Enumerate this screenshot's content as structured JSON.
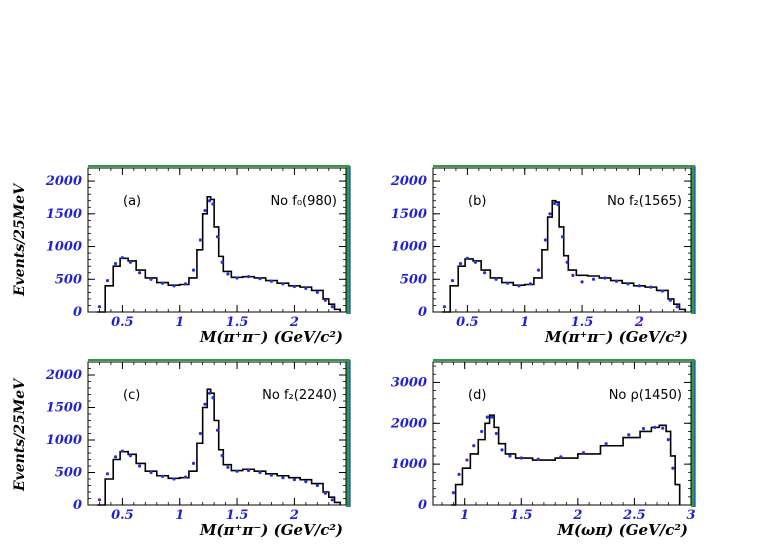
{
  "figure": {
    "y_title": "Events/25MeV"
  },
  "colors": {
    "frame_shadow_green": "#2e9b4a",
    "frame_shadow_blue": "#2040d0",
    "tick_label_blue": "#1f1fd6",
    "data_points": "#2233dd",
    "histogram": "#000000"
  },
  "chart_data": [
    {
      "id": "a",
      "type": "line",
      "panel_label": "(a)",
      "annotation": "No f₀(980)",
      "xlabel": "M(π⁺π⁻) (GeV/c²)",
      "ylabel": "Events/25MeV",
      "xlim": [
        0.2,
        2.45
      ],
      "ylim": [
        0,
        2200
      ],
      "xticks": [
        0.5,
        1,
        1.5,
        2
      ],
      "xtick_labels": [
        "0.5",
        "1",
        "1.5",
        "2"
      ],
      "yticks": [
        0,
        500,
        1000,
        1500,
        2000
      ],
      "ytick_labels": [
        "0",
        "500",
        "1000",
        "1500",
        "2000"
      ],
      "grid": false,
      "series": [
        {
          "style": "histogram",
          "x": [
            0.28,
            0.35,
            0.42,
            0.48,
            0.55,
            0.62,
            0.7,
            0.8,
            0.9,
            1.0,
            1.08,
            1.15,
            1.2,
            1.24,
            1.27,
            1.3,
            1.34,
            1.38,
            1.45,
            1.55,
            1.65,
            1.75,
            1.85,
            1.95,
            2.05,
            2.15,
            2.25,
            2.3,
            2.35,
            2.4
          ],
          "y": [
            0,
            400,
            700,
            820,
            780,
            640,
            520,
            450,
            410,
            420,
            520,
            950,
            1500,
            1760,
            1720,
            1300,
            850,
            620,
            530,
            540,
            520,
            480,
            440,
            400,
            380,
            330,
            200,
            120,
            40,
            0
          ]
        },
        {
          "style": "points",
          "x": [
            0.3,
            0.37,
            0.44,
            0.5,
            0.57,
            0.65,
            0.75,
            0.85,
            0.95,
            1.05,
            1.12,
            1.18,
            1.22,
            1.26,
            1.29,
            1.33,
            1.37,
            1.42,
            1.5,
            1.6,
            1.7,
            1.8,
            1.9,
            2.0,
            2.1,
            2.2,
            2.27,
            2.33
          ],
          "y": [
            80,
            480,
            740,
            830,
            760,
            600,
            500,
            440,
            400,
            430,
            640,
            1100,
            1550,
            1700,
            1650,
            1150,
            760,
            580,
            520,
            540,
            510,
            470,
            430,
            390,
            360,
            300,
            180,
            80
          ]
        }
      ]
    },
    {
      "id": "b",
      "type": "line",
      "panel_label": "(b)",
      "annotation": "No f₂(1565)",
      "xlabel": "M(π⁺π⁻) (GeV/c²)",
      "ylabel": "",
      "xlim": [
        0.2,
        2.45
      ],
      "ylim": [
        0,
        2200
      ],
      "xticks": [
        0.5,
        1,
        1.5,
        2
      ],
      "xtick_labels": [
        "0.5",
        "1",
        "1.5",
        "2"
      ],
      "yticks": [
        0,
        500,
        1000,
        1500,
        2000
      ],
      "ytick_labels": [
        "0",
        "500",
        "1000",
        "1500",
        "2000"
      ],
      "grid": false,
      "series": [
        {
          "style": "histogram",
          "x": [
            0.28,
            0.35,
            0.42,
            0.48,
            0.55,
            0.62,
            0.7,
            0.8,
            0.9,
            1.0,
            1.08,
            1.15,
            1.2,
            1.24,
            1.27,
            1.3,
            1.34,
            1.38,
            1.45,
            1.55,
            1.65,
            1.75,
            1.85,
            1.95,
            2.05,
            2.15,
            2.25,
            2.3,
            2.35,
            2.4
          ],
          "y": [
            0,
            400,
            700,
            810,
            780,
            640,
            520,
            450,
            410,
            420,
            520,
            950,
            1450,
            1700,
            1680,
            1300,
            860,
            640,
            560,
            550,
            520,
            480,
            440,
            400,
            380,
            330,
            200,
            120,
            40,
            0
          ]
        },
        {
          "style": "points",
          "x": [
            0.3,
            0.37,
            0.44,
            0.5,
            0.57,
            0.65,
            0.75,
            0.85,
            0.95,
            1.05,
            1.12,
            1.18,
            1.22,
            1.26,
            1.29,
            1.33,
            1.37,
            1.42,
            1.5,
            1.6,
            1.7,
            1.8,
            1.9,
            2.0,
            2.1,
            2.2,
            2.27,
            2.33
          ],
          "y": [
            80,
            480,
            740,
            820,
            760,
            600,
            500,
            440,
            400,
            430,
            640,
            1100,
            1500,
            1660,
            1640,
            1150,
            760,
            560,
            460,
            500,
            520,
            470,
            430,
            400,
            380,
            320,
            180,
            80
          ]
        }
      ]
    },
    {
      "id": "c",
      "type": "line",
      "panel_label": "(c)",
      "annotation": "No f₂(2240)",
      "xlabel": "M(π⁺π⁻) (GeV/c²)",
      "ylabel": "Events/25MeV",
      "xlim": [
        0.2,
        2.45
      ],
      "ylim": [
        0,
        2200
      ],
      "xticks": [
        0.5,
        1,
        1.5,
        2
      ],
      "xtick_labels": [
        "0.5",
        "1",
        "1.5",
        "2"
      ],
      "yticks": [
        0,
        500,
        1000,
        1500,
        2000
      ],
      "ytick_labels": [
        "0",
        "500",
        "1000",
        "1500",
        "2000"
      ],
      "grid": false,
      "series": [
        {
          "style": "histogram",
          "x": [
            0.28,
            0.35,
            0.42,
            0.48,
            0.55,
            0.62,
            0.7,
            0.8,
            0.9,
            1.0,
            1.08,
            1.15,
            1.2,
            1.24,
            1.27,
            1.3,
            1.34,
            1.38,
            1.45,
            1.55,
            1.65,
            1.75,
            1.85,
            1.95,
            2.05,
            2.15,
            2.25,
            2.3,
            2.35,
            2.4
          ],
          "y": [
            0,
            400,
            700,
            820,
            780,
            640,
            520,
            450,
            410,
            420,
            520,
            950,
            1500,
            1780,
            1720,
            1300,
            850,
            620,
            530,
            550,
            520,
            480,
            450,
            420,
            390,
            330,
            200,
            120,
            40,
            0
          ]
        },
        {
          "style": "points",
          "x": [
            0.3,
            0.37,
            0.44,
            0.5,
            0.57,
            0.65,
            0.75,
            0.85,
            0.95,
            1.05,
            1.12,
            1.18,
            1.22,
            1.26,
            1.29,
            1.33,
            1.37,
            1.42,
            1.5,
            1.6,
            1.7,
            1.8,
            1.9,
            2.0,
            2.1,
            2.2,
            2.27,
            2.33
          ],
          "y": [
            80,
            480,
            740,
            830,
            760,
            600,
            500,
            440,
            400,
            430,
            640,
            1100,
            1550,
            1720,
            1650,
            1150,
            760,
            580,
            520,
            530,
            500,
            460,
            420,
            390,
            360,
            300,
            180,
            80
          ]
        }
      ]
    },
    {
      "id": "d",
      "type": "line",
      "panel_label": "(d)",
      "annotation": "No ρ(1450)",
      "xlabel": "M(ωπ) (GeV/c²)",
      "ylabel": "",
      "xlim": [
        0.72,
        3.0
      ],
      "ylim": [
        0,
        3500
      ],
      "xticks": [
        1,
        1.5,
        2,
        2.5,
        3
      ],
      "xtick_labels": [
        "1",
        "1.5",
        "2",
        "2.5",
        "3"
      ],
      "yticks": [
        0,
        1000,
        2000,
        3000
      ],
      "ytick_labels": [
        "0",
        "1000",
        "2000",
        "3000"
      ],
      "grid": false,
      "series": [
        {
          "style": "histogram",
          "x": [
            0.88,
            0.92,
            0.98,
            1.05,
            1.12,
            1.18,
            1.22,
            1.26,
            1.3,
            1.36,
            1.45,
            1.6,
            1.8,
            2.0,
            2.2,
            2.4,
            2.55,
            2.65,
            2.72,
            2.78,
            2.82,
            2.86,
            2.9
          ],
          "y": [
            0,
            500,
            900,
            1250,
            1600,
            2000,
            2200,
            1900,
            1500,
            1250,
            1150,
            1100,
            1150,
            1250,
            1450,
            1650,
            1800,
            1900,
            1950,
            1800,
            1200,
            500,
            0
          ]
        },
        {
          "style": "points",
          "x": [
            0.9,
            0.95,
            1.02,
            1.08,
            1.15,
            1.2,
            1.24,
            1.28,
            1.33,
            1.4,
            1.5,
            1.65,
            1.85,
            2.05,
            2.25,
            2.45,
            2.58,
            2.68,
            2.75,
            2.8,
            2.84
          ],
          "y": [
            300,
            750,
            1100,
            1450,
            1800,
            2150,
            2150,
            1750,
            1350,
            1200,
            1150,
            1120,
            1180,
            1280,
            1500,
            1720,
            1870,
            1900,
            1880,
            1600,
            900
          ]
        }
      ]
    }
  ]
}
